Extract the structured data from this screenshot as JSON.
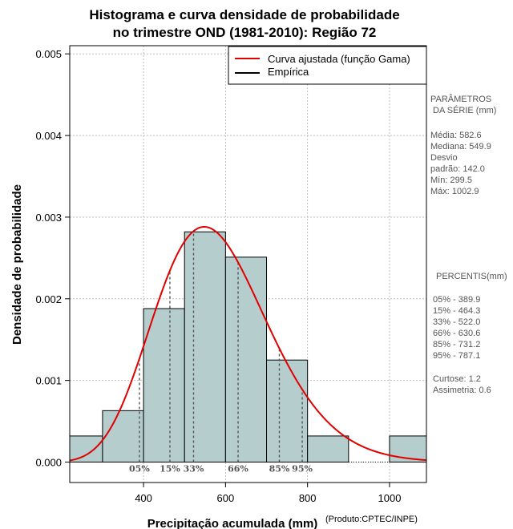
{
  "chart_data": {
    "type": "histogram",
    "title_line1": "Histograma e curva densidade de probabilidade",
    "title_line2": "no trimestre OND (1981-2010): Região 72",
    "xlabel": "Precipitação acumulada (mm)",
    "ylabel": "Densidade de probabilidade",
    "credit": "(Produto:CPTEC/INPE)",
    "xlim": [
      220,
      1090
    ],
    "ylim": [
      -0.00025,
      0.0051
    ],
    "x_ticks": [
      400,
      600,
      800,
      1000
    ],
    "x_tick_labels": [
      "400",
      "600",
      "800",
      "1000"
    ],
    "y_ticks": [
      0,
      0.001,
      0.002,
      0.003,
      0.004,
      0.005
    ],
    "y_tick_labels": [
      "0.000",
      "0.001",
      "0.002",
      "0.003",
      "0.004",
      "0.005"
    ],
    "bins": [
      {
        "from": 200,
        "to": 300,
        "density": 0.00032
      },
      {
        "from": 300,
        "to": 400,
        "density": 0.00063
      },
      {
        "from": 400,
        "to": 500,
        "density": 0.00188
      },
      {
        "from": 500,
        "to": 600,
        "density": 0.00282
      },
      {
        "from": 600,
        "to": 700,
        "density": 0.00251
      },
      {
        "from": 700,
        "to": 800,
        "density": 0.00125
      },
      {
        "from": 800,
        "to": 900,
        "density": 0.00032
      },
      {
        "from": 900,
        "to": 1000,
        "density": 0.0
      },
      {
        "from": 1000,
        "to": 1100,
        "density": 0.00032
      }
    ],
    "bar_color": "#b5cdcc",
    "curve_color": "#e00000",
    "gamma_fit": {
      "mean": 582.6,
      "sd": 142.0
    },
    "percentiles": [
      {
        "label": "05%",
        "value": 389.9
      },
      {
        "label": "15%",
        "value": 464.3
      },
      {
        "label": "33%",
        "value": 522.0
      },
      {
        "label": "66%",
        "value": 630.6
      },
      {
        "label": "85%",
        "value": 731.2
      },
      {
        "label": "95%",
        "value": 787.1
      }
    ],
    "legend": [
      {
        "label": "Curva ajustada (função Gama)",
        "color": "#e00000"
      },
      {
        "label": "Empírica",
        "color": "#000000"
      }
    ]
  },
  "side_panel": {
    "params_header_1": "PARÂMETROS",
    "params_header_2": "DA SÉRIE (mm)",
    "params": [
      "Média:  582.6",
      "Mediana:  549.9",
      "Desvio",
      "padrão:  142.0",
      "Mín:  299.5",
      "Máx:  1002.9"
    ],
    "percentis_header": "PERCENTIS(mm)",
    "percentis": [
      "05% -  389.9",
      "15% -  464.3",
      "33% -  522.0",
      "66% -  630.6",
      "85% -  731.2",
      "95% -  787.1"
    ],
    "stats": [
      "Curtose:  1.2",
      "Assimetria:  0.6"
    ]
  }
}
